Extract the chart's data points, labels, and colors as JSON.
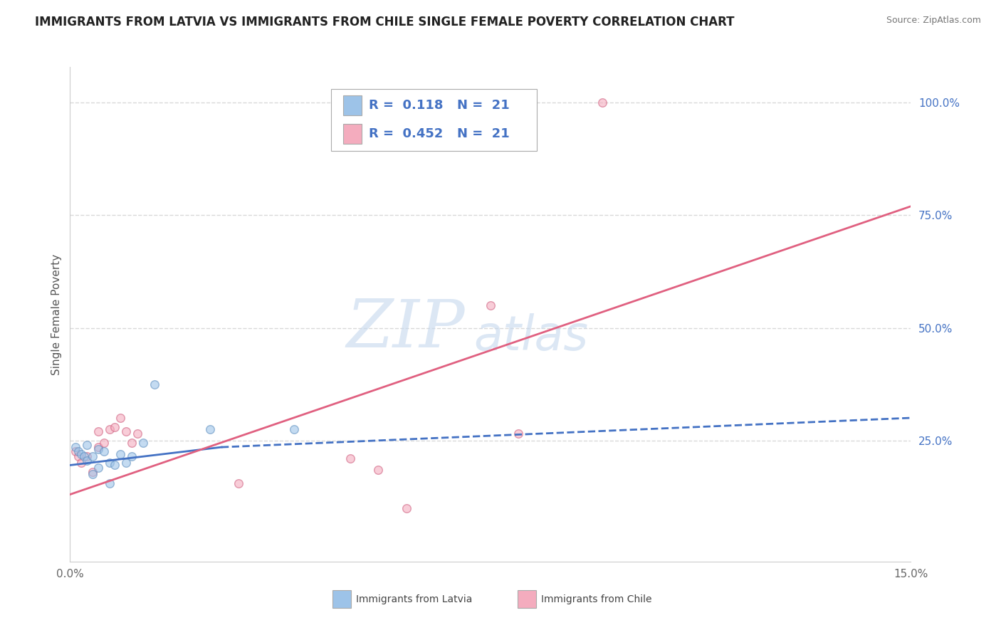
{
  "title": "IMMIGRANTS FROM LATVIA VS IMMIGRANTS FROM CHILE SINGLE FEMALE POVERTY CORRELATION CHART",
  "source": "Source: ZipAtlas.com",
  "ylabel_label": "Single Female Poverty",
  "xlim": [
    0.0,
    0.15
  ],
  "ylim": [
    -0.02,
    1.08
  ],
  "yticks": [
    0.25,
    0.5,
    0.75,
    1.0
  ],
  "ytick_labels": [
    "25.0%",
    "50.0%",
    "75.0%",
    "100.0%"
  ],
  "xticks": [
    0.0,
    0.15
  ],
  "xtick_labels": [
    "0.0%",
    "15.0%"
  ],
  "watermark_zip": "ZIP",
  "watermark_atlas": "atlas",
  "legend_entries": [
    {
      "label": "Immigrants from Latvia",
      "R": "0.118",
      "N": "21",
      "color": "#9dc3e8",
      "edgecolor": "#6090c0"
    },
    {
      "label": "Immigrants from Chile",
      "R": "0.452",
      "N": "21",
      "color": "#f4acbe",
      "edgecolor": "#d06080"
    }
  ],
  "latvia_scatter_x": [
    0.001,
    0.0015,
    0.002,
    0.0025,
    0.003,
    0.003,
    0.004,
    0.004,
    0.005,
    0.005,
    0.006,
    0.007,
    0.007,
    0.008,
    0.009,
    0.01,
    0.011,
    0.013,
    0.015,
    0.025,
    0.04
  ],
  "latvia_scatter_y": [
    0.235,
    0.225,
    0.22,
    0.215,
    0.24,
    0.205,
    0.215,
    0.175,
    0.23,
    0.19,
    0.225,
    0.2,
    0.155,
    0.195,
    0.22,
    0.2,
    0.215,
    0.245,
    0.375,
    0.275,
    0.275
  ],
  "chile_scatter_x": [
    0.001,
    0.0015,
    0.002,
    0.003,
    0.004,
    0.005,
    0.005,
    0.006,
    0.007,
    0.008,
    0.009,
    0.01,
    0.011,
    0.012,
    0.03,
    0.05,
    0.055,
    0.06,
    0.075,
    0.08,
    0.095
  ],
  "chile_scatter_y": [
    0.225,
    0.215,
    0.2,
    0.215,
    0.18,
    0.235,
    0.27,
    0.245,
    0.275,
    0.28,
    0.3,
    0.27,
    0.245,
    0.265,
    0.155,
    0.21,
    0.185,
    0.1,
    0.55,
    0.265,
    1.0
  ],
  "latvia_trend_solid": {
    "x": [
      0.0,
      0.027
    ],
    "y": [
      0.195,
      0.235
    ],
    "color": "#4472c4",
    "lw": 2
  },
  "latvia_trend_dash": {
    "x": [
      0.027,
      0.15
    ],
    "y": [
      0.235,
      0.3
    ],
    "color": "#4472c4",
    "lw": 2
  },
  "chile_trend": {
    "x": [
      0.0,
      0.15
    ],
    "y": [
      0.13,
      0.77
    ],
    "color": "#e06080",
    "lw": 2
  },
  "grid_color": "#d8d8d8",
  "bg_color": "#ffffff",
  "title_color": "#222222",
  "title_fontsize": 12,
  "source_fontsize": 9,
  "axis_label_fontsize": 11,
  "tick_fontsize": 11,
  "legend_fontsize": 13,
  "scatter_size": 70,
  "scatter_alpha": 0.6
}
